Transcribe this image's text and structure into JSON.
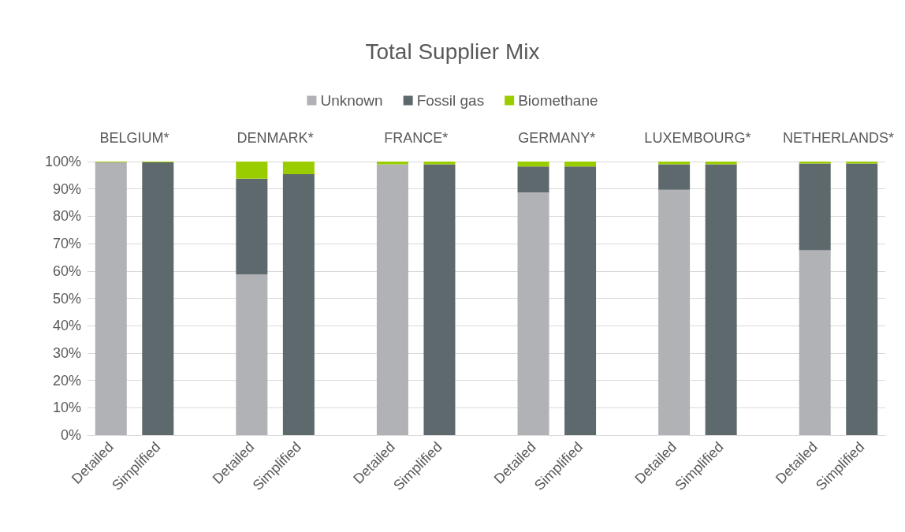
{
  "chart_data": {
    "type": "bar",
    "title": "Total Supplier Mix",
    "categories": [
      "Detailed",
      "Simplified",
      null,
      "Detailed",
      "Simplified",
      null,
      "Detailed",
      "Simplified",
      null,
      "Detailed",
      "Simplified",
      null,
      "Detailed",
      "Simplified",
      null,
      "Detailed",
      "Simplified"
    ],
    "series": [
      {
        "name": "Unknown",
        "color": "#b1b2b5",
        "values": [
          99.7,
          0,
          null,
          58.7,
          0,
          null,
          99.0,
          0,
          null,
          88.7,
          0,
          null,
          89.7,
          0,
          null,
          67.6,
          0
        ]
      },
      {
        "name": "Fossil gas",
        "color": "#5e696e",
        "values": [
          0,
          99.7,
          null,
          35.0,
          95.4,
          null,
          0,
          99.0,
          null,
          9.5,
          98.2,
          null,
          9.3,
          99.0,
          null,
          31.7,
          99.3
        ]
      },
      {
        "name": "Biomethane",
        "color": "#9acd00",
        "values": [
          0.3,
          0.3,
          null,
          6.3,
          4.6,
          null,
          1.0,
          1.0,
          null,
          1.8,
          1.8,
          null,
          1.0,
          1.0,
          null,
          0.7,
          0.7
        ]
      }
    ],
    "stacked": true,
    "annotations": [
      "BELGIUM*",
      "DENMARK*",
      "FRANCE*",
      "GERMANY*",
      "LUXEMBOURG*",
      "NETHERLANDS*"
    ],
    "ylim": [
      0,
      100
    ],
    "yticks": [
      {
        "value": 0,
        "label": "0%"
      },
      {
        "value": 10,
        "label": "10%"
      },
      {
        "value": 20,
        "label": "20%"
      },
      {
        "value": 30,
        "label": "30%"
      },
      {
        "value": 40,
        "label": "40%"
      },
      {
        "value": 50,
        "label": "50%"
      },
      {
        "value": 60,
        "label": "60%"
      },
      {
        "value": 70,
        "label": "70%"
      },
      {
        "value": 80,
        "label": "80%"
      },
      {
        "value": 90,
        "label": "90%"
      },
      {
        "value": 100,
        "label": "100%"
      }
    ],
    "grid": "y",
    "legend": "top"
  }
}
